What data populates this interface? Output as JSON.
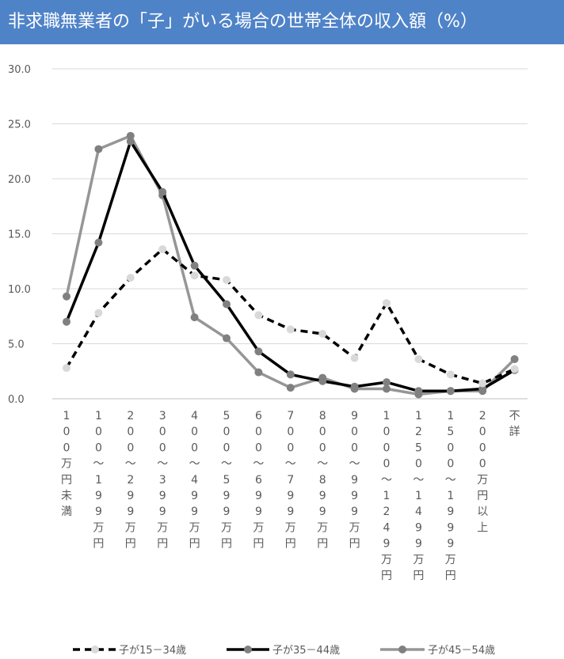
{
  "title": "非求職無業者の「子」がいる場合の世帯全体の収入額（%）",
  "chart_data": {
    "type": "line",
    "title": "非求職無業者の「子」がいる場合の世帯全体の収入額（%）",
    "ylim": [
      0,
      30
    ],
    "yticks": [
      "0.0",
      "5.0",
      "10.0",
      "15.0",
      "20.0",
      "25.0",
      "30.0"
    ],
    "grid": true,
    "legend_position": "bottom",
    "categories": [
      "100万円未満",
      "100〜199万円",
      "200〜299万円",
      "300〜399万円",
      "400〜499万円",
      "500〜599万円",
      "600〜699万円",
      "700〜799万円",
      "800〜899万円",
      "900〜999万円",
      "1000〜1249万円",
      "1250〜1499万円",
      "1500〜1999万円",
      "2000万円以上",
      "不詳"
    ],
    "category_labels_vertical": [
      [
        "1",
        "0",
        "0",
        "万",
        "円",
        "未",
        "満"
      ],
      [
        "1",
        "0",
        "0",
        "〜",
        "1",
        "9",
        "9",
        "万",
        "円"
      ],
      [
        "2",
        "0",
        "0",
        "〜",
        "2",
        "9",
        "9",
        "万",
        "円"
      ],
      [
        "3",
        "0",
        "0",
        "〜",
        "3",
        "9",
        "9",
        "万",
        "円"
      ],
      [
        "4",
        "0",
        "0",
        "〜",
        "4",
        "9",
        "9",
        "万",
        "円"
      ],
      [
        "5",
        "0",
        "0",
        "〜",
        "5",
        "9",
        "9",
        "万",
        "円"
      ],
      [
        "6",
        "0",
        "0",
        "〜",
        "6",
        "9",
        "9",
        "万",
        "円"
      ],
      [
        "7",
        "0",
        "0",
        "〜",
        "7",
        "9",
        "9",
        "万",
        "円"
      ],
      [
        "8",
        "0",
        "0",
        "〜",
        "8",
        "9",
        "9",
        "万",
        "円"
      ],
      [
        "9",
        "0",
        "0",
        "〜",
        "9",
        "9",
        "9",
        "万",
        "円"
      ],
      [
        "1",
        "0",
        "0",
        "0",
        "〜",
        "1",
        "2",
        "4",
        "9",
        "万",
        "円"
      ],
      [
        "1",
        "2",
        "5",
        "0",
        "〜",
        "1",
        "4",
        "9",
        "9",
        "万",
        "円"
      ],
      [
        "1",
        "5",
        "0",
        "0",
        "〜",
        "1",
        "9",
        "9",
        "9",
        "万",
        "円"
      ],
      [
        "2",
        "0",
        "0",
        "0",
        "万",
        "円",
        "以",
        "上"
      ],
      [
        "不",
        "詳"
      ]
    ],
    "series": [
      {
        "name": "子が15－34歳",
        "line_color": "#000000",
        "marker_color": "#d9d9d9",
        "dash": "dashed",
        "values": [
          2.8,
          7.8,
          11.0,
          13.6,
          11.2,
          10.8,
          7.6,
          6.3,
          5.9,
          3.7,
          8.7,
          3.6,
          2.2,
          1.4,
          2.7
        ]
      },
      {
        "name": "子が35－44歳",
        "line_color": "#000000",
        "marker_color": "#808080",
        "dash": "solid",
        "values": [
          7.0,
          14.2,
          23.4,
          18.8,
          12.1,
          8.6,
          4.3,
          2.2,
          1.6,
          1.1,
          1.5,
          0.7,
          0.7,
          0.9,
          2.6
        ]
      },
      {
        "name": "子が45－54歳",
        "line_color": "#969696",
        "marker_color": "#808080",
        "dash": "solid",
        "values": [
          9.3,
          22.7,
          23.9,
          18.5,
          7.4,
          5.5,
          2.4,
          1.0,
          1.9,
          0.9,
          0.9,
          0.4,
          0.7,
          0.7,
          3.6
        ]
      }
    ]
  }
}
